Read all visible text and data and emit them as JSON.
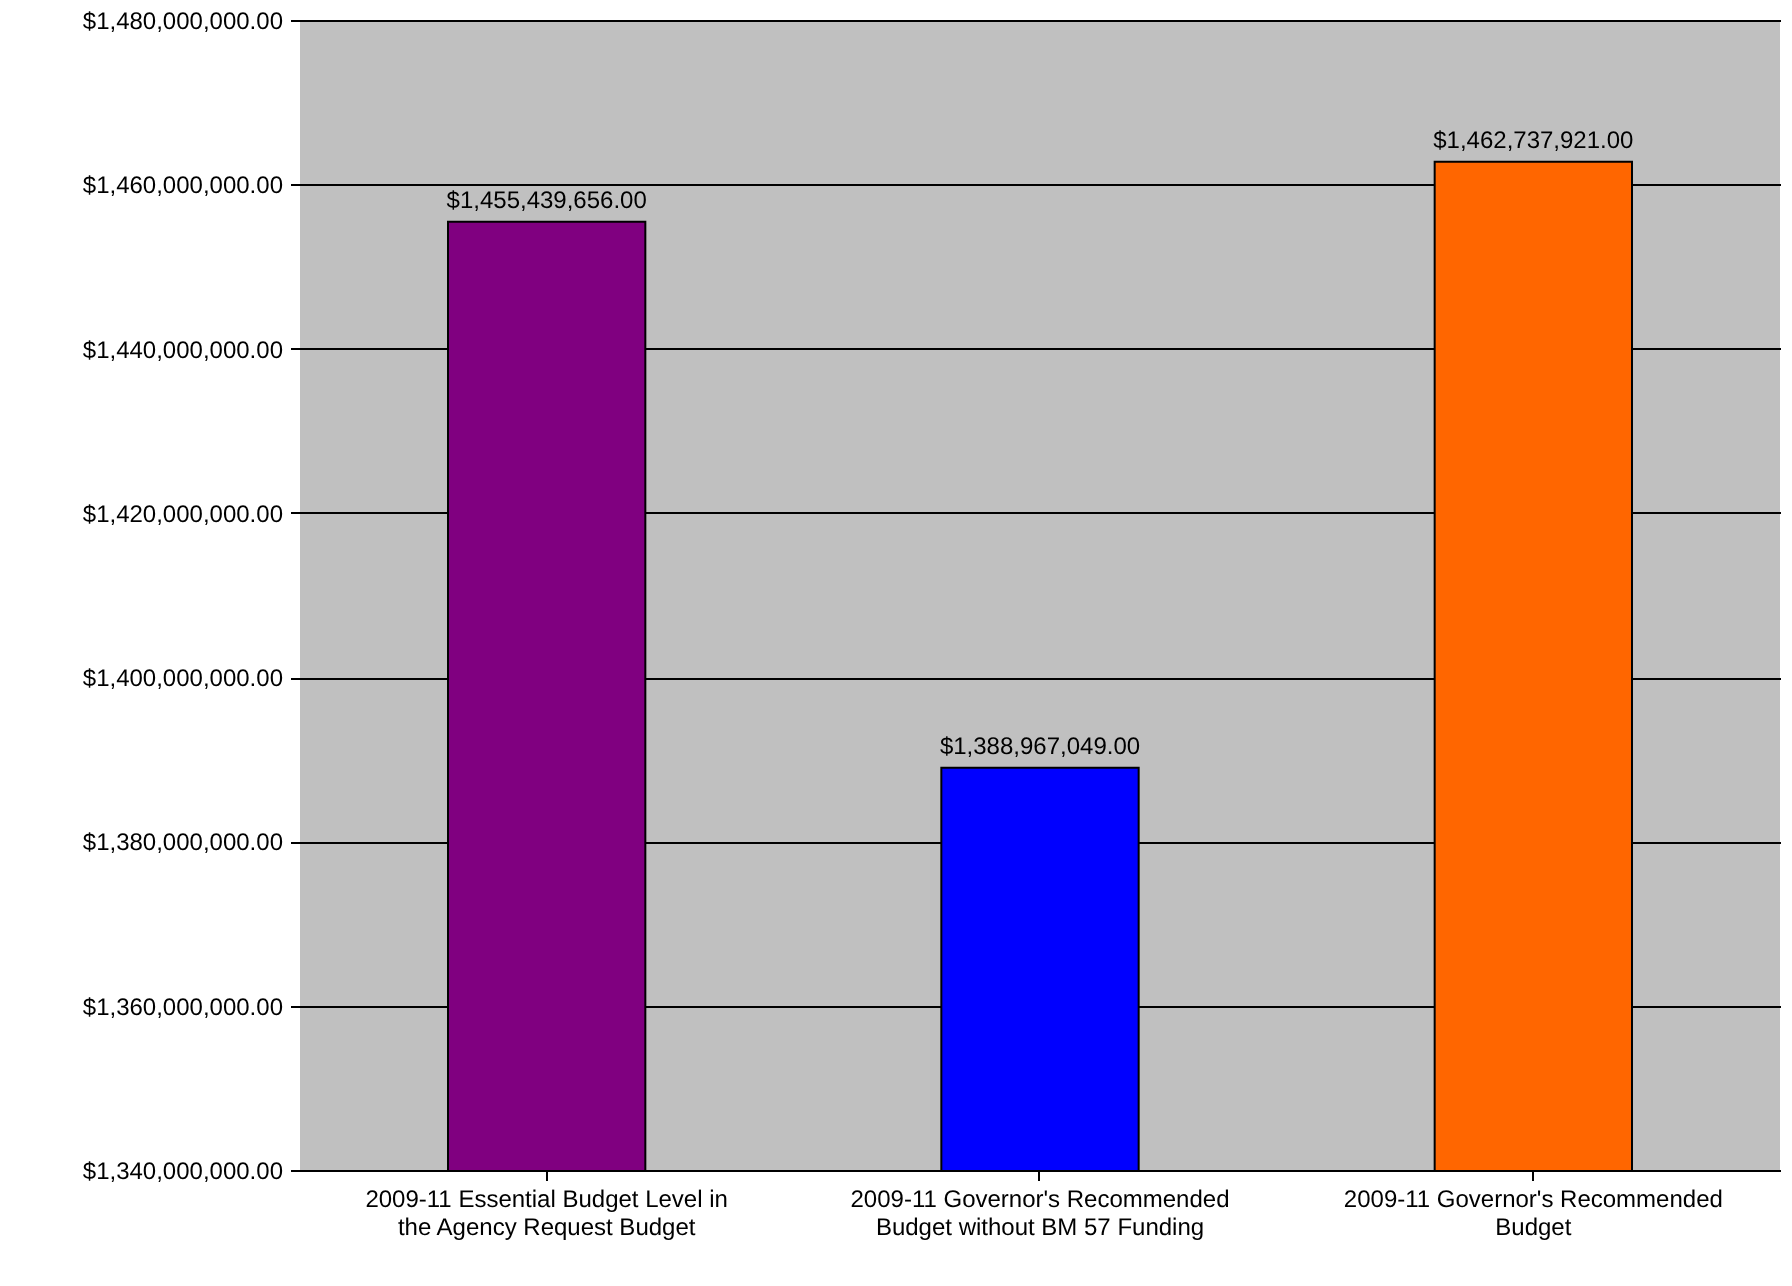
{
  "chart_data": {
    "type": "bar",
    "categories": [
      "2009-11 Essential Budget Level in the Agency Request Budget",
      "2009-11 Governor's Recommended Budget without BM 57 Funding",
      "2009-11 Governor's Recommended Budget"
    ],
    "values": [
      1455439656,
      1388967049,
      1462737921
    ],
    "colors": [
      "#800080",
      "#0000ff",
      "#ff6600"
    ],
    "value_labels": [
      "$1,455,439,656.00",
      "$1,388,967,049.00",
      "$1,462,737,921.00"
    ],
    "ylim": [
      1340000000,
      1480000000
    ],
    "yticks": [
      {
        "value": 1340000000,
        "label": "$1,340,000,000.00"
      },
      {
        "value": 1360000000,
        "label": "$1,360,000,000.00"
      },
      {
        "value": 1380000000,
        "label": "$1,380,000,000.00"
      },
      {
        "value": 1400000000,
        "label": "$1,400,000,000.00"
      },
      {
        "value": 1420000000,
        "label": "$1,420,000,000.00"
      },
      {
        "value": 1440000000,
        "label": "$1,440,000,000.00"
      },
      {
        "value": 1460000000,
        "label": "$1,460,000,000.00"
      },
      {
        "value": 1480000000,
        "label": "$1,480,000,000.00"
      }
    ],
    "grid": "y"
  }
}
